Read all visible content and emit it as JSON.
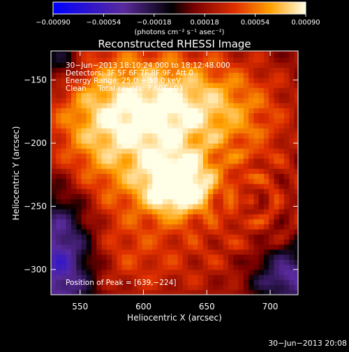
{
  "colorbar": {
    "tick_labels": [
      "−0.00090",
      "−0.00054",
      "−0.00018",
      "0.00018",
      "0.00054",
      "0.00090"
    ],
    "tick_values": [
      -0.0009,
      -0.00054,
      -0.00018,
      0.00018,
      0.00054,
      0.0009
    ],
    "range": [
      -0.0009,
      0.0009
    ],
    "units_label": "(photons cm⁻² s⁻¹ asec⁻²)",
    "colors": [
      "#0000ff",
      "#5a2a9c",
      "#000000",
      "#7a0000",
      "#e03000",
      "#ffa000",
      "#ffffe8"
    ]
  },
  "plot": {
    "title": "Reconstructed RHESSI Image",
    "info_lines": [
      "30−Jun−2013 18:10:24.000 to 18:12:48.000",
      "Detectors: 3F 5F 6F 7F 8F 9F, Att 0",
      "Energy Range: 25.0 − 50.0 keV",
      "Clean     Total counts: 7.60E+03"
    ],
    "peak_label": "Position of Peak = [639,−224]",
    "footer_timestamp": "30−Jun−2013 20:08"
  },
  "chart_data": {
    "type": "heatmap",
    "title": "Reconstructed RHESSI Image",
    "xlabel": "Heliocentric X (arcsec)",
    "ylabel": "Heliocentric Y (arcsec)",
    "xlim": [
      527,
      722
    ],
    "ylim": [
      -320,
      -127
    ],
    "x_ticks": [
      550,
      600,
      650,
      700
    ],
    "y_ticks": [
      -300,
      -250,
      -200,
      -150
    ],
    "x_tick_labels": [
      "550",
      "600",
      "650",
      "700"
    ],
    "y_tick_labels": [
      "−300",
      "−250",
      "−200",
      "−150"
    ],
    "peak_position": [
      639,
      -224
    ],
    "value_range": [
      -0.0009,
      0.0009
    ],
    "units": "photons cm⁻² s⁻¹ asec⁻²"
  }
}
